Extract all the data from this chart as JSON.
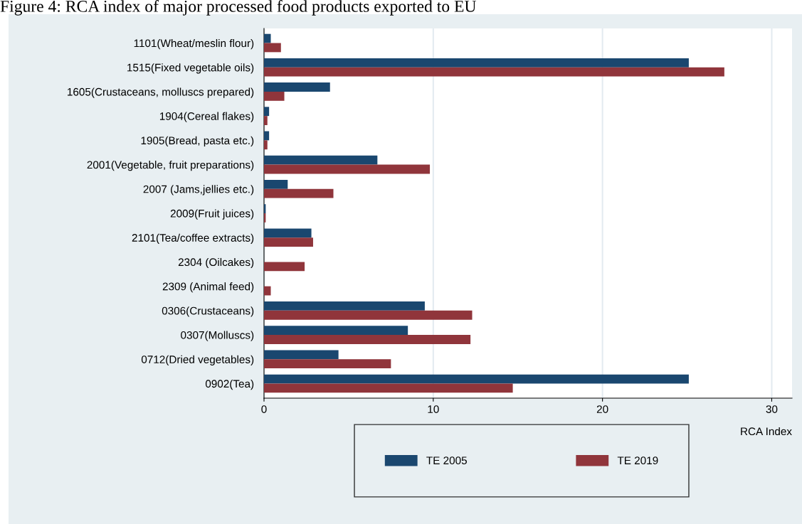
{
  "chart_data": {
    "type": "bar",
    "orientation": "horizontal",
    "title": "Figure 4: RCA index of major processed food products exported to EU",
    "xlabel": "RCA Index",
    "categories": [
      "1101(Wheat/meslin flour)",
      "1515(Fixed vegetable oils)",
      "1605(Crustaceans, molluscs prepared)",
      "1904(Cereal flakes)",
      "1905(Bread, pasta etc.)",
      "2001(Vegetable, fruit preparations)",
      "2007 (Jams,jellies etc.)",
      "2009(Fruit juices)",
      "2101(Tea/coffee extracts)",
      "2304 (Oilcakes)",
      "2309 (Animal feed)",
      "0306(Crustaceans)",
      "0307(Molluscs)",
      "0712(Dried vegetables)",
      "0902(Tea)"
    ],
    "series": [
      {
        "name": "TE 2005",
        "color": "#1a476f",
        "values": [
          0.4,
          25.1,
          3.9,
          0.3,
          0.3,
          6.7,
          1.4,
          0.1,
          2.8,
          0.0,
          0.0,
          9.5,
          8.5,
          4.4,
          25.1
        ]
      },
      {
        "name": "TE 2019",
        "color": "#90353b",
        "values": [
          1.0,
          27.2,
          1.2,
          0.2,
          0.2,
          9.8,
          4.1,
          0.1,
          2.9,
          2.4,
          0.4,
          12.3,
          12.2,
          7.5,
          14.7
        ]
      }
    ],
    "xlim": [
      0,
      31.2
    ],
    "xticks": [
      0,
      10,
      20,
      30
    ],
    "grid": "x",
    "legend": "bottom"
  }
}
